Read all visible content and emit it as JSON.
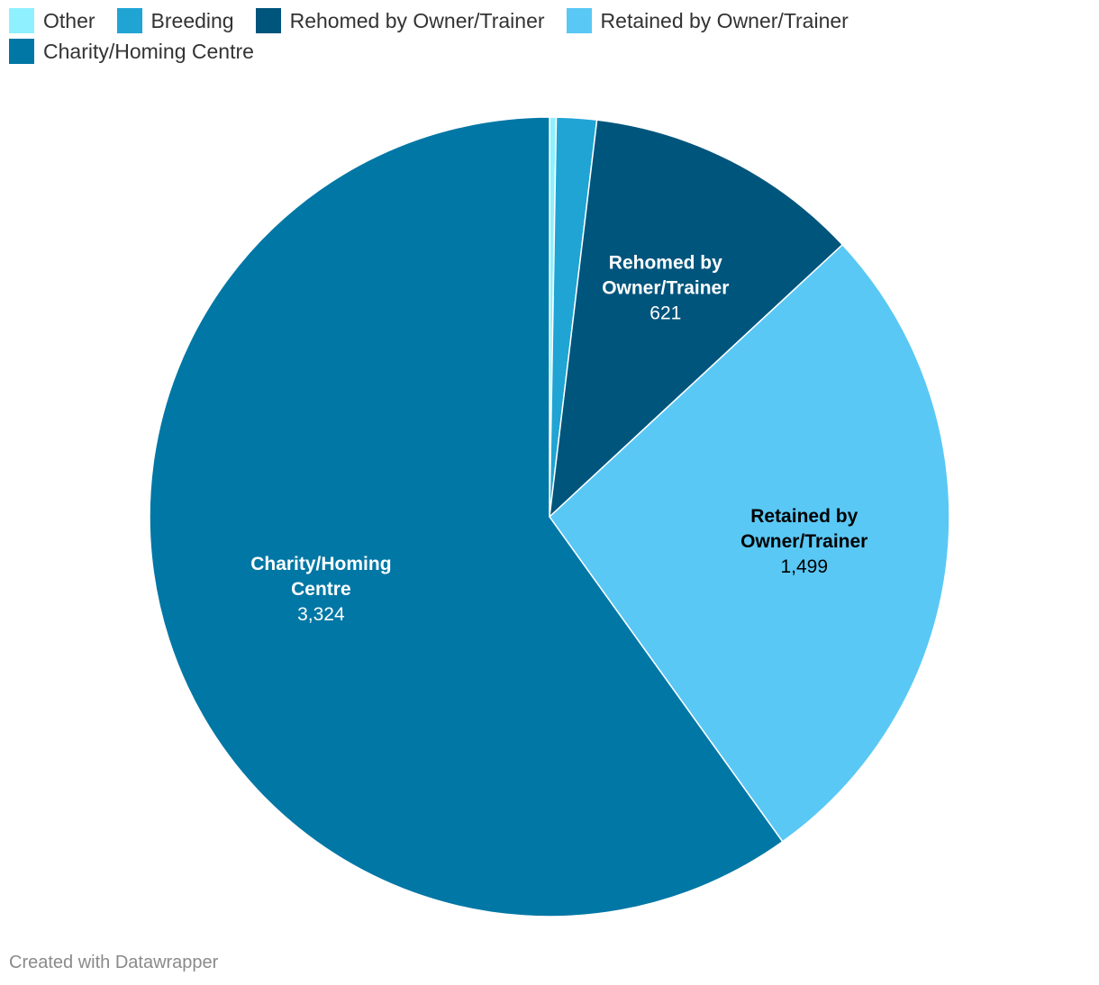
{
  "chart_data": {
    "type": "pie",
    "categories": [
      "Other",
      "Breeding",
      "Rehomed by Owner/Trainer",
      "Retained by Owner/Trainer",
      "Charity/Homing Centre"
    ],
    "values": [
      15,
      90,
      621,
      1499,
      3324
    ],
    "colors": [
      "#8ff0ff",
      "#1fa4d4",
      "#00557c",
      "#5ac8f5",
      "#0077a5"
    ],
    "value_labels": [
      "",
      "",
      "621",
      "1,499",
      "3,324"
    ],
    "label_lines": [
      [],
      [],
      [
        "Rehomed by",
        "Owner/Trainer"
      ],
      [
        "Retained by",
        "Owner/Trainer"
      ],
      [
        "Charity/Homing",
        "Centre"
      ]
    ],
    "label_colors": [
      "#ffffff",
      "#ffffff",
      "#ffffff",
      "#000000",
      "#ffffff"
    ],
    "legend_placement": "top-left"
  },
  "footer": {
    "credit": "Created with Datawrapper"
  }
}
